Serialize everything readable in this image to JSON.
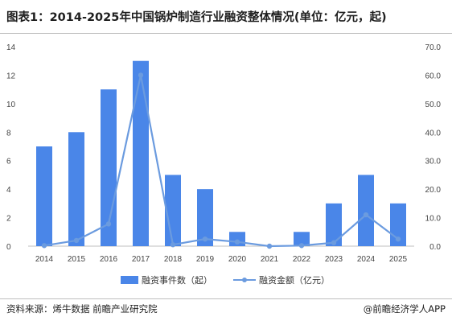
{
  "title": "图表1：2014-2025年中国锅炉制造行业融资整体情况(单位：亿元，起)",
  "footer": {
    "source": "资料来源：烯牛数据 前瞻产业研究院",
    "brand": "@前瞻经济学人APP"
  },
  "colors": {
    "bar": "#4a86e8",
    "line": "#6b9bdf"
  },
  "chart_data": {
    "type": "bar",
    "categories": [
      "2014",
      "2015",
      "2016",
      "2017",
      "2018",
      "2019",
      "2020",
      "2021",
      "2022",
      "2023",
      "2024",
      "2025"
    ],
    "series": [
      {
        "name": "融资事件数（起）",
        "type": "bar",
        "axis": "left",
        "values": [
          7,
          8,
          11,
          13,
          5,
          4,
          1,
          0,
          1,
          3,
          5,
          3
        ]
      },
      {
        "name": "融资金额（亿元）",
        "type": "line",
        "axis": "right",
        "values": [
          0.2,
          2.0,
          7.8,
          60.0,
          0.5,
          2.5,
          1.5,
          0.0,
          0.2,
          1.2,
          11.0,
          2.5
        ]
      }
    ],
    "y_left": {
      "min": 0,
      "max": 14,
      "ticks": [
        "0",
        "2",
        "4",
        "6",
        "8",
        "10",
        "12",
        "14"
      ]
    },
    "y_right": {
      "min": 0,
      "max": 70,
      "ticks": [
        "0.0",
        "10.0",
        "20.0",
        "30.0",
        "40.0",
        "50.0",
        "60.0",
        "70.0"
      ]
    },
    "grid": false,
    "legend_position": "bottom"
  }
}
